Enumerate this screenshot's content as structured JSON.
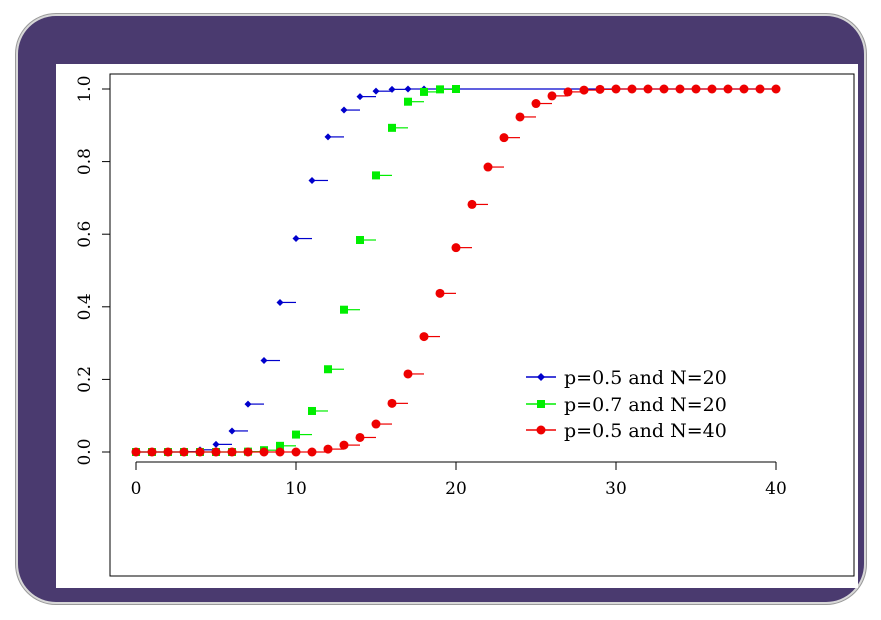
{
  "chart_data": {
    "type": "scatter",
    "title": "",
    "xlabel": "",
    "ylabel": "",
    "xlim": [
      0,
      40
    ],
    "ylim": [
      0,
      1
    ],
    "x_ticks": [
      0,
      10,
      20,
      30,
      40
    ],
    "x_tick_labels": [
      "0",
      "10",
      "20",
      "30",
      "40"
    ],
    "y_ticks": [
      0,
      0.2,
      0.4,
      0.6,
      0.8,
      1
    ],
    "y_tick_labels": [
      "0.0",
      "0.2",
      "0.4",
      "0.6",
      "0.8",
      "1.0"
    ],
    "grid": false,
    "legend_position": "right",
    "series": [
      {
        "name": "p=0.5 and N=20",
        "color": "#0000cc",
        "marker": "diamond",
        "x": [
          0,
          1,
          2,
          3,
          4,
          5,
          6,
          7,
          8,
          9,
          10,
          11,
          12,
          13,
          14,
          15,
          16,
          17,
          18,
          19,
          20
        ],
        "values": [
          0.0,
          0.0,
          0.0,
          0.001,
          0.006,
          0.021,
          0.058,
          0.132,
          0.252,
          0.412,
          0.588,
          0.748,
          0.868,
          0.942,
          0.979,
          0.994,
          0.999,
          1.0,
          1.0,
          1.0,
          1.0
        ]
      },
      {
        "name": "p=0.7 and N=20",
        "color": "#00ee00",
        "marker": "square",
        "x": [
          0,
          1,
          2,
          3,
          4,
          5,
          6,
          7,
          8,
          9,
          10,
          11,
          12,
          13,
          14,
          15,
          16,
          17,
          18,
          19,
          20
        ],
        "values": [
          0.0,
          0.0,
          0.0,
          0.0,
          0.0,
          0.0,
          0.0,
          0.001,
          0.005,
          0.017,
          0.048,
          0.113,
          0.228,
          0.392,
          0.584,
          0.762,
          0.893,
          0.965,
          0.992,
          0.999,
          1.0
        ]
      },
      {
        "name": "p=0.5 and N=40",
        "color": "#ee0000",
        "marker": "circle",
        "x": [
          0,
          1,
          2,
          3,
          4,
          5,
          6,
          7,
          8,
          9,
          10,
          11,
          12,
          13,
          14,
          15,
          16,
          17,
          18,
          19,
          20,
          21,
          22,
          23,
          24,
          25,
          26,
          27,
          28,
          29,
          30,
          31,
          32,
          33,
          34,
          35,
          36,
          37,
          38,
          39,
          40
        ],
        "values": [
          0.0,
          0.0,
          0.0,
          0.0,
          0.0,
          0.0,
          0.0,
          0.0,
          0.0,
          0.0,
          0.0,
          0.0,
          0.008,
          0.019,
          0.04,
          0.077,
          0.134,
          0.215,
          0.318,
          0.437,
          0.563,
          0.682,
          0.785,
          0.866,
          0.923,
          0.96,
          0.981,
          0.992,
          0.997,
          0.999,
          1.0,
          1.0,
          1.0,
          1.0,
          1.0,
          1.0,
          1.0,
          1.0,
          1.0,
          1.0,
          1.0
        ]
      }
    ]
  }
}
